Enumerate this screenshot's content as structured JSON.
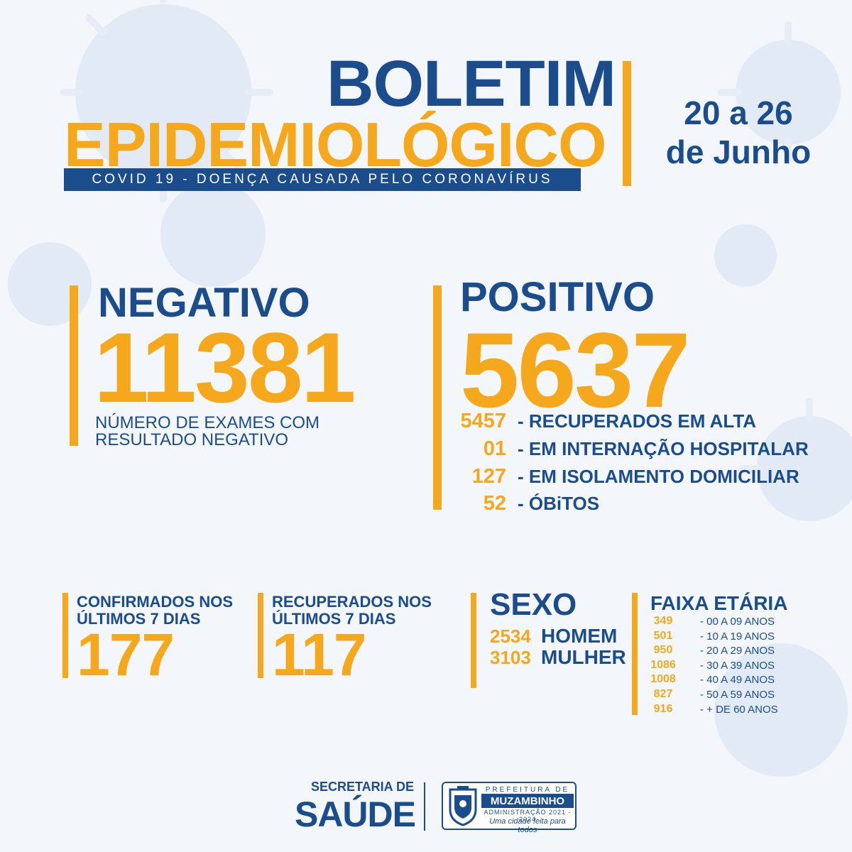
{
  "header": {
    "title_line1": "BOLETIM",
    "title_line2": "EPIDEMIOLÓGICO",
    "subtitle": "COVID 19 - DOENÇA CAUSADA PELO CORONAVÍRUS",
    "date_line1": "20 a 26",
    "date_line2": "de Junho"
  },
  "negativo": {
    "label": "NEGATIVO",
    "value": "11381",
    "desc_line1": "NÚMERO DE EXAMES COM",
    "desc_line2": "RESULTADO NEGATIVO"
  },
  "positivo": {
    "label": "POSITIVO",
    "value": "5637",
    "items": [
      {
        "value": "5457",
        "label": "- RECUPERADOS EM ALTA"
      },
      {
        "value": "01",
        "label": "- EM INTERNAÇÃO HOSPITALAR"
      },
      {
        "value": "127",
        "label": "- EM ISOLAMENTO DOMICILIAR"
      },
      {
        "value": "52",
        "label": "- ÓBiTOS"
      }
    ]
  },
  "confirmados": {
    "line1": "CONFIRMADOS NOS",
    "line2": "ÚLTIMOS 7 DIAS",
    "value": "177"
  },
  "recuperados": {
    "line1": "RECUPERADOS NOS",
    "line2": "ÚLTIMOS 7 DIAS",
    "value": "117"
  },
  "sexo": {
    "label": "SEXO",
    "items": [
      {
        "value": "2534",
        "label": "HOMEM"
      },
      {
        "value": "3103",
        "label": "MULHER"
      }
    ]
  },
  "faixa_etaria": {
    "label": "FAIXA ETÁRIA",
    "items": [
      {
        "value": "349",
        "label": "- 00 A 09 ANOS"
      },
      {
        "value": "501",
        "label": "- 10 A 19 ANOS"
      },
      {
        "value": "950",
        "label": "- 20 A 29 ANOS"
      },
      {
        "value": "1086",
        "label": "- 30 A 39 ANOS"
      },
      {
        "value": "1008",
        "label": "- 40 A 49 ANOS"
      },
      {
        "value": "827",
        "label": "- 50 A 59 ANOS"
      },
      {
        "value": "916",
        "label": "- + DE 60 ANOS"
      }
    ]
  },
  "footer": {
    "secretaria_line1": "SECRETARIA DE",
    "secretaria_line2": "SAÚDE",
    "logo_top": "PREFEITURA DE",
    "logo_name": "MUZAMBINHO",
    "logo_admin": "ADMINISTRAÇÃO 2021 - 2024",
    "logo_slogan": "Uma cidade feita para todos"
  },
  "colors": {
    "blue": "#1b4d8c",
    "orange": "#f5a81c",
    "background": "#f3f6fb"
  }
}
